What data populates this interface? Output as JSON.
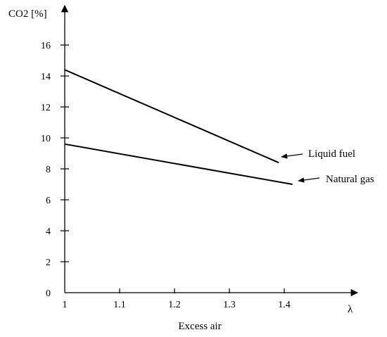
{
  "chart_data": {
    "type": "line",
    "title": "",
    "xlabel": "Excess air",
    "x_axis_symbol": "λ",
    "ylabel": "CO2 [%]",
    "xlim": [
      1.0,
      1.5
    ],
    "ylim": [
      0,
      16
    ],
    "x_ticks": [
      {
        "value": 1.0,
        "label": "1"
      },
      {
        "value": 1.1,
        "label": "1.1"
      },
      {
        "value": 1.2,
        "label": "1.2"
      },
      {
        "value": 1.3,
        "label": "1.3"
      },
      {
        "value": 1.4,
        "label": "1.4"
      }
    ],
    "y_ticks": [
      {
        "value": 0,
        "label": "0"
      },
      {
        "value": 2,
        "label": "2"
      },
      {
        "value": 4,
        "label": "4"
      },
      {
        "value": 6,
        "label": "6"
      },
      {
        "value": 8,
        "label": "8"
      },
      {
        "value": 10,
        "label": "10"
      },
      {
        "value": 12,
        "label": "12"
      },
      {
        "value": 14,
        "label": "14"
      },
      {
        "value": 16,
        "label": "16"
      }
    ],
    "grid": false,
    "legend": "none",
    "series": [
      {
        "name": "Liquid fuel",
        "x": [
          1.0,
          1.39
        ],
        "y": [
          14.4,
          8.4
        ],
        "color": "#000000"
      },
      {
        "name": "Natural gas",
        "x": [
          1.0,
          1.415
        ],
        "y": [
          9.6,
          7.0
        ],
        "color": "#000000"
      }
    ]
  }
}
